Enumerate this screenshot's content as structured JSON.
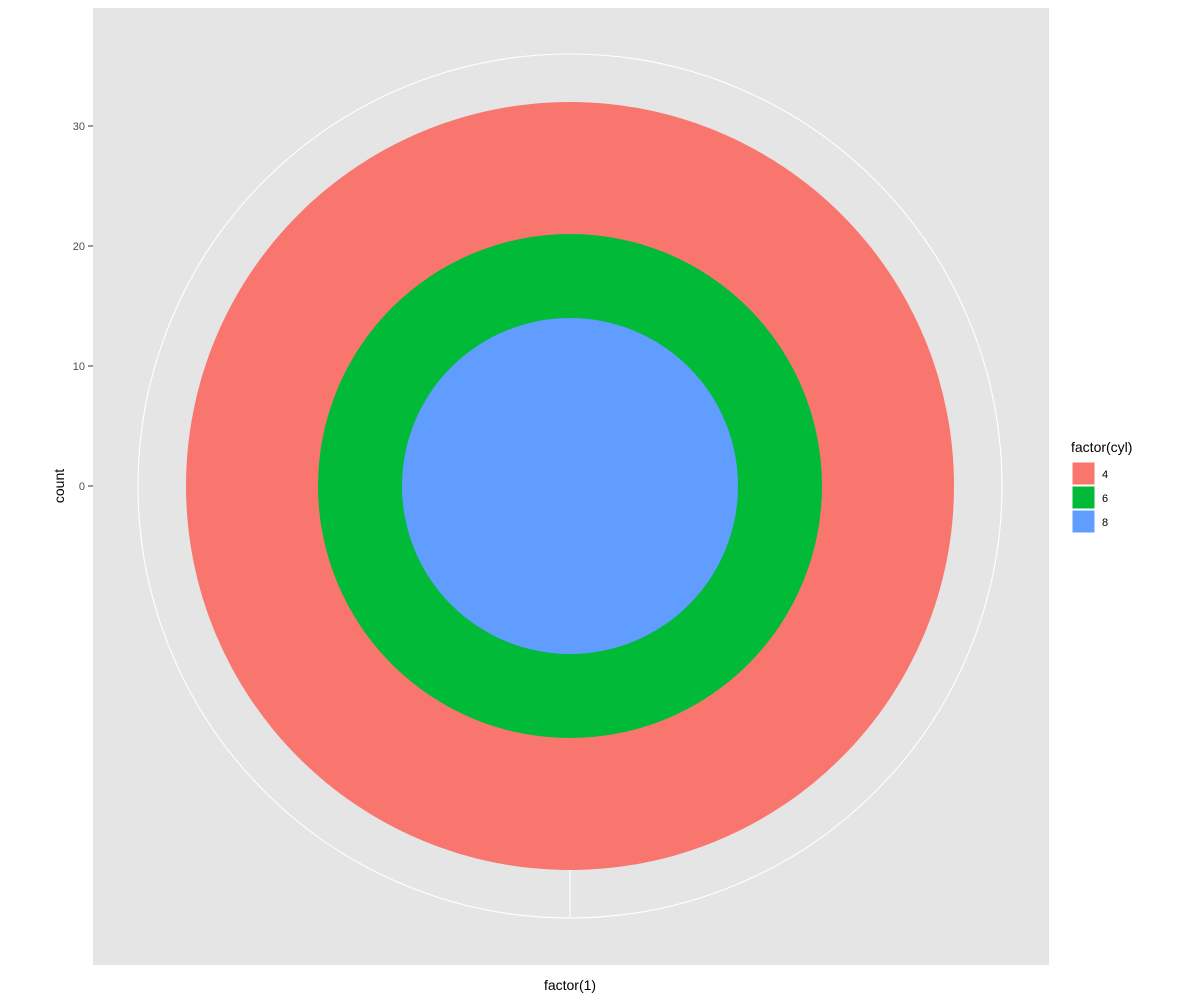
{
  "chart_data": {
    "type": "pie",
    "coord": "polar (theta = x, radius = count)",
    "xlabel": "factor(1)",
    "ylabel": "count",
    "categories": [
      "factor(1)"
    ],
    "series": [
      {
        "name": "4",
        "value": 11,
        "color": "#F8766D"
      },
      {
        "name": "6",
        "value": 7,
        "color": "#00BA38"
      },
      {
        "name": "8",
        "value": 14,
        "color": "#619CFF"
      }
    ],
    "stack_order_from_center": [
      "8",
      "6",
      "4"
    ],
    "cumulative_radius": {
      "8": 14,
      "6": 21,
      "4": 32
    },
    "ylim": [
      0,
      36
    ],
    "y_ticks": [
      0,
      10,
      20,
      30
    ],
    "y_tick_labels": [
      "0",
      "10",
      "20",
      "30"
    ],
    "legend": {
      "title": "factor(cyl)",
      "position": "right",
      "entries": [
        {
          "label": "4",
          "color": "#F8766D"
        },
        {
          "label": "6",
          "color": "#00BA38"
        },
        {
          "label": "8",
          "color": "#619CFF"
        }
      ]
    },
    "panel_background": "#E5E5E5",
    "grid_color": "#FFFFFF",
    "grid": true
  }
}
